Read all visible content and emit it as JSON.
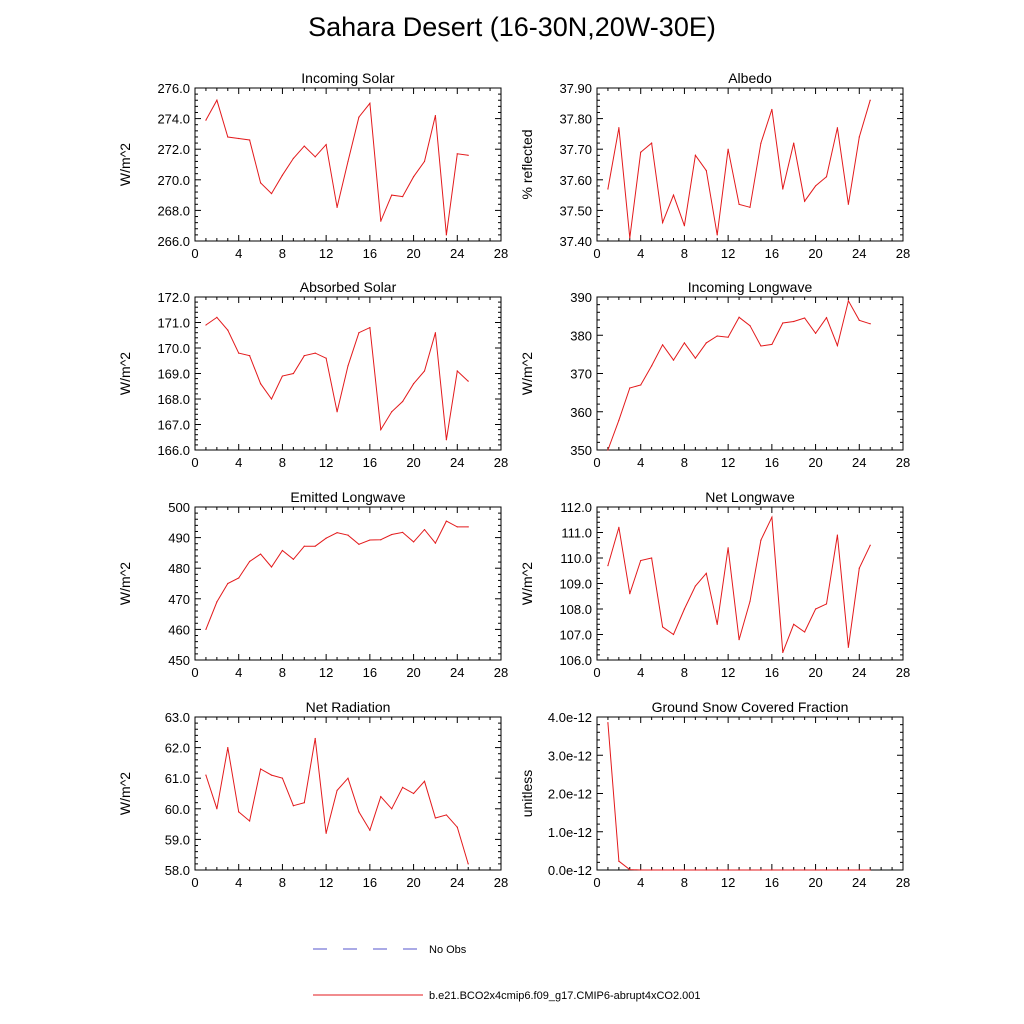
{
  "page_title": "Sahara Desert (16-30N,20W-30E)",
  "series_color": "#e31a1c",
  "obs_color": "#5555cc",
  "legend": {
    "obs_label": "No Obs",
    "model_label": "b.e21.BCO2x4cmip6.f09_g17.CMIP6-abrupt4xCO2.001"
  },
  "x_axis": {
    "min": 0,
    "max": 28,
    "ticks": [
      0,
      4,
      8,
      12,
      16,
      20,
      24,
      28
    ]
  },
  "chart_data": [
    {
      "type": "line",
      "title": "Incoming Solar",
      "ylabel": "W/m^2",
      "ylim": [
        266,
        276
      ],
      "yticks": [
        "276.0",
        "274.0",
        "272.0",
        "270.0",
        "268.0",
        "266.0"
      ],
      "yticks_values": [
        276,
        274,
        272,
        270,
        268,
        266
      ],
      "x": [
        1,
        2,
        3,
        4,
        5,
        6,
        7,
        8,
        9,
        10,
        11,
        12,
        13,
        14,
        15,
        16,
        17,
        18,
        19,
        20,
        21,
        22,
        23,
        24,
        25
      ],
      "values": [
        273.9,
        275.2,
        272.8,
        272.7,
        272.6,
        269.8,
        269.1,
        270.3,
        271.4,
        272.2,
        271.5,
        272.3,
        268.2,
        271.2,
        274.1,
        275.0,
        267.3,
        269.0,
        268.9,
        270.2,
        271.2,
        274.2,
        266.4,
        271.7,
        271.6
      ]
    },
    {
      "type": "line",
      "title": "Albedo",
      "ylabel": "% reflected",
      "ylim": [
        37.4,
        37.9
      ],
      "yticks": [
        "37.90",
        "37.80",
        "37.70",
        "37.60",
        "37.50",
        "37.40"
      ],
      "yticks_values": [
        37.9,
        37.8,
        37.7,
        37.6,
        37.5,
        37.4
      ],
      "x": [
        1,
        2,
        3,
        4,
        5,
        6,
        7,
        8,
        9,
        10,
        11,
        12,
        13,
        14,
        15,
        16,
        17,
        18,
        19,
        20,
        21,
        22,
        23,
        24,
        25
      ],
      "values": [
        37.57,
        37.77,
        37.41,
        37.69,
        37.72,
        37.46,
        37.55,
        37.45,
        37.68,
        37.63,
        37.42,
        37.7,
        37.52,
        37.51,
        37.72,
        37.83,
        37.57,
        37.72,
        37.53,
        37.58,
        37.61,
        37.77,
        37.52,
        37.74,
        37.86
      ]
    },
    {
      "type": "line",
      "title": "Absorbed Solar",
      "ylabel": "W/m^2",
      "ylim": [
        166,
        172
      ],
      "yticks": [
        "172.0",
        "171.0",
        "170.0",
        "169.0",
        "168.0",
        "167.0",
        "166.0"
      ],
      "yticks_values": [
        172,
        171,
        170,
        169,
        168,
        167,
        166
      ],
      "x": [
        1,
        2,
        3,
        4,
        5,
        6,
        7,
        8,
        9,
        10,
        11,
        12,
        13,
        14,
        15,
        16,
        17,
        18,
        19,
        20,
        21,
        22,
        23,
        24,
        25
      ],
      "values": [
        170.9,
        171.2,
        170.7,
        169.8,
        169.7,
        168.6,
        168.0,
        168.9,
        169.0,
        169.7,
        169.8,
        169.6,
        167.5,
        169.3,
        170.6,
        170.8,
        166.8,
        167.5,
        167.9,
        168.6,
        169.1,
        170.6,
        166.4,
        169.1,
        168.7
      ]
    },
    {
      "type": "line",
      "title": "Incoming Longwave",
      "ylabel": "W/m^2",
      "ylim": [
        350,
        390
      ],
      "yticks": [
        "390",
        "380",
        "370",
        "360",
        "350"
      ],
      "yticks_values": [
        390,
        380,
        370,
        360,
        350
      ],
      "x": [
        1,
        2,
        3,
        4,
        5,
        6,
        7,
        8,
        9,
        10,
        11,
        12,
        13,
        14,
        15,
        16,
        17,
        18,
        19,
        20,
        21,
        22,
        23,
        24,
        25
      ],
      "values": [
        350.0,
        357.8,
        366.2,
        367.0,
        372.0,
        377.5,
        373.5,
        378.0,
        374.0,
        378.0,
        379.8,
        379.5,
        384.7,
        382.5,
        377.2,
        377.6,
        383.2,
        383.6,
        384.5,
        380.5,
        384.6,
        377.3,
        389.0,
        383.9,
        383.0
      ]
    },
    {
      "type": "line",
      "title": "Emitted Longwave",
      "ylabel": "W/m^2",
      "ylim": [
        450,
        500
      ],
      "yticks": [
        "500",
        "490",
        "480",
        "470",
        "460",
        "450"
      ],
      "yticks_values": [
        500,
        490,
        480,
        470,
        460,
        450
      ],
      "x": [
        1,
        2,
        3,
        4,
        5,
        6,
        7,
        8,
        9,
        10,
        11,
        12,
        13,
        14,
        15,
        16,
        17,
        18,
        19,
        20,
        21,
        22,
        23,
        24,
        25
      ],
      "values": [
        460.0,
        469.0,
        475.0,
        476.8,
        482.2,
        484.6,
        480.4,
        485.8,
        482.9,
        487.2,
        487.2,
        489.8,
        491.6,
        490.8,
        487.8,
        489.2,
        489.3,
        491.0,
        491.7,
        488.6,
        492.6,
        488.2,
        495.4,
        493.5,
        493.5
      ]
    },
    {
      "type": "line",
      "title": "Net Longwave",
      "ylabel": "W/m^2",
      "ylim": [
        106,
        112
      ],
      "yticks": [
        "112.0",
        "111.0",
        "110.0",
        "109.0",
        "108.0",
        "107.0",
        "106.0"
      ],
      "yticks_values": [
        112,
        111,
        110,
        109,
        108,
        107,
        106
      ],
      "x": [
        1,
        2,
        3,
        4,
        5,
        6,
        7,
        8,
        9,
        10,
        11,
        12,
        13,
        14,
        15,
        16,
        17,
        18,
        19,
        20,
        21,
        22,
        23,
        24,
        25
      ],
      "values": [
        109.7,
        111.2,
        108.6,
        109.9,
        110.0,
        107.3,
        107.0,
        108.0,
        108.9,
        109.4,
        107.4,
        110.4,
        106.8,
        108.3,
        110.7,
        111.6,
        106.3,
        107.4,
        107.1,
        108.0,
        108.2,
        110.9,
        106.5,
        109.6,
        110.5
      ]
    },
    {
      "type": "line",
      "title": "Net Radiation",
      "ylabel": "W/m^2",
      "ylim": [
        58,
        63
      ],
      "yticks": [
        "63.0",
        "62.0",
        "61.0",
        "60.0",
        "59.0",
        "58.0"
      ],
      "yticks_values": [
        63,
        62,
        61,
        60,
        59,
        58
      ],
      "x": [
        1,
        2,
        3,
        4,
        5,
        6,
        7,
        8,
        9,
        10,
        11,
        12,
        13,
        14,
        15,
        16,
        17,
        18,
        19,
        20,
        21,
        22,
        23,
        24,
        25
      ],
      "values": [
        61.1,
        60.0,
        62.0,
        59.9,
        59.6,
        61.3,
        61.1,
        61.0,
        60.1,
        60.2,
        62.3,
        59.2,
        60.6,
        61.0,
        59.9,
        59.3,
        60.4,
        60.0,
        60.7,
        60.5,
        60.9,
        59.7,
        59.8,
        59.4,
        58.2
      ]
    },
    {
      "type": "line",
      "title": "Ground Snow Covered Fraction",
      "ylabel": "unitless",
      "ylim": [
        0,
        4e-12
      ],
      "yticks": [
        "4.0e-12",
        "3.0e-12",
        "2.0e-12",
        "1.0e-12",
        "0.0e-12"
      ],
      "yticks_values": [
        4e-12,
        3e-12,
        2e-12,
        1e-12,
        0
      ],
      "x": [
        1,
        2,
        3,
        4,
        5,
        6,
        7,
        8,
        9,
        10,
        11,
        12,
        13,
        14,
        15,
        16,
        17,
        18,
        19,
        20,
        21,
        22,
        23,
        24,
        25
      ],
      "values": [
        3.85e-12,
        2.3e-13,
        1e-14,
        0,
        0,
        0,
        0,
        0,
        0,
        0,
        0,
        0,
        0,
        0,
        0,
        0,
        0,
        0,
        0,
        0,
        0,
        0,
        0,
        0,
        0
      ]
    }
  ]
}
